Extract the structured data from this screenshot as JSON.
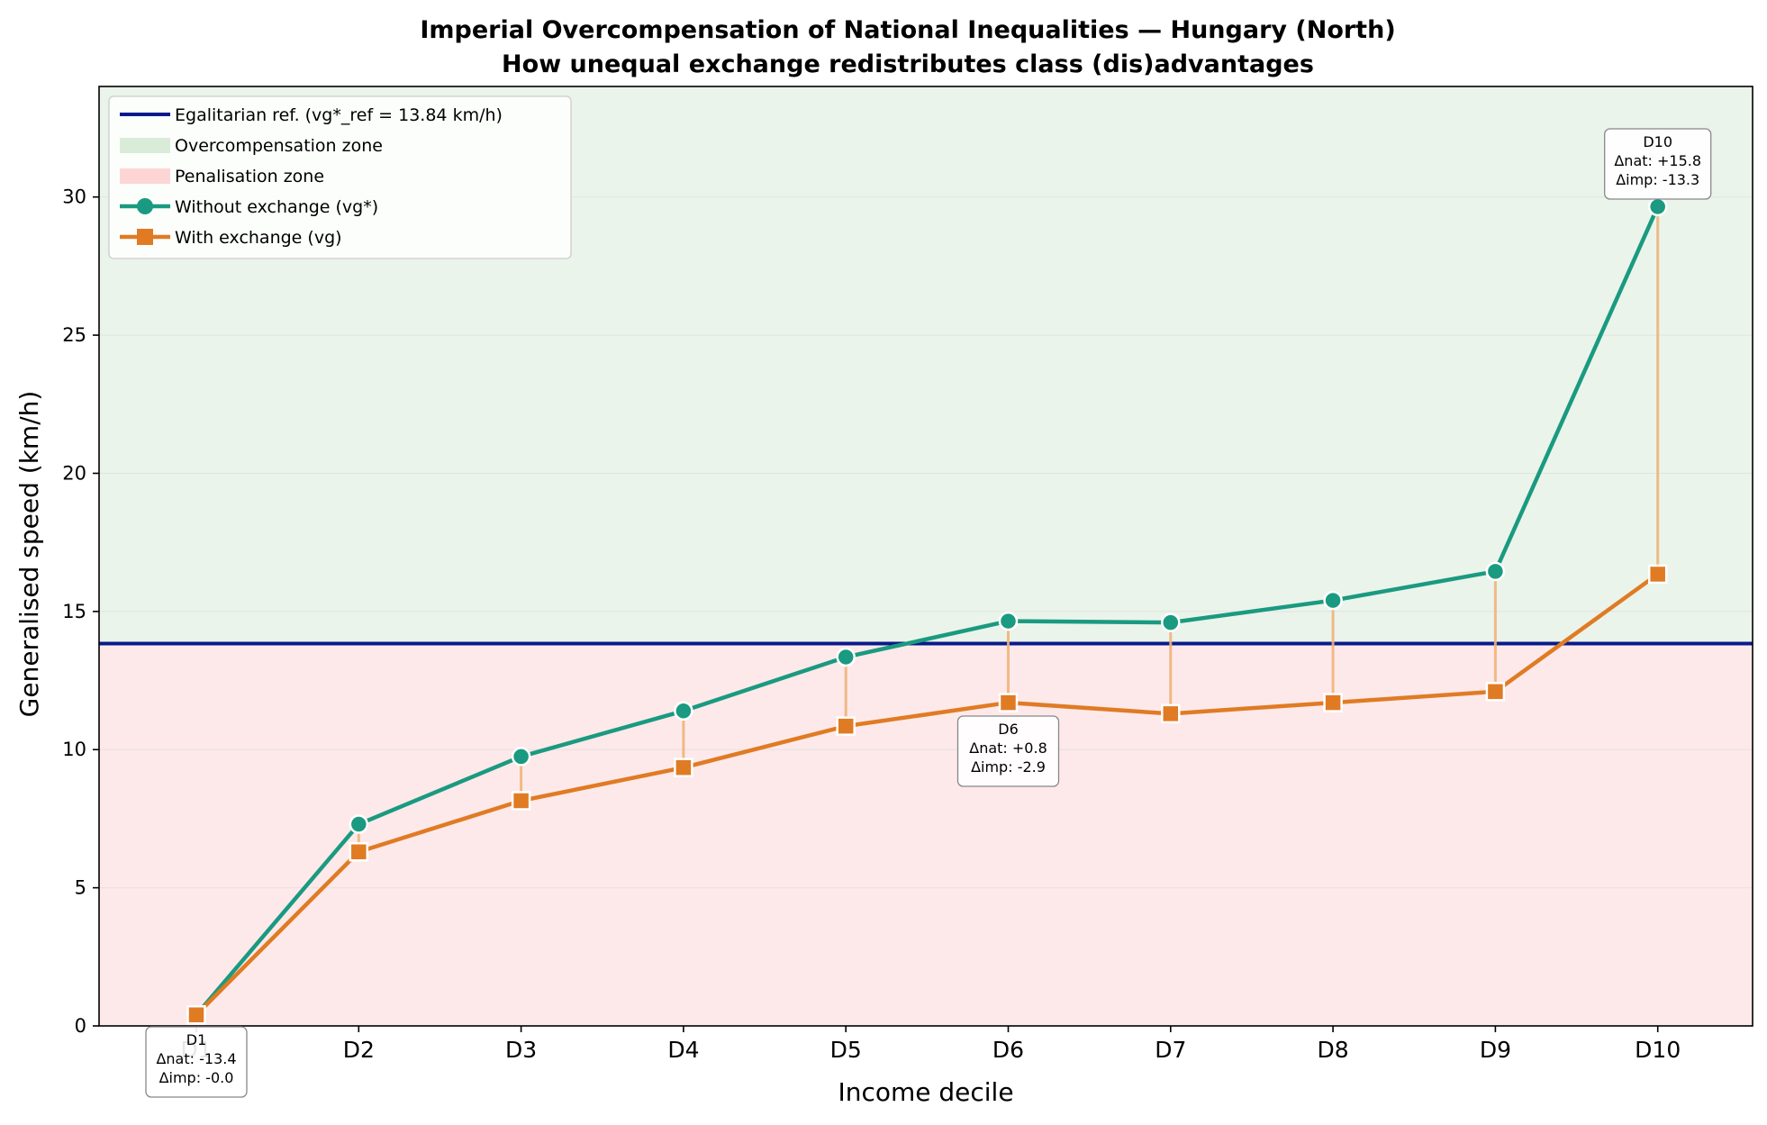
{
  "chart_data": {
    "type": "line",
    "title": "Imperial Overcompensation of National Inequalities — Hungary (North)",
    "subtitle": "How unequal exchange redistributes class (dis)advantages",
    "xlabel": "Income decile",
    "ylabel": "Generalised speed (km/h)",
    "categories": [
      "D1",
      "D2",
      "D3",
      "D4",
      "D5",
      "D6",
      "D7",
      "D8",
      "D9",
      "D10"
    ],
    "ylim": [
      0,
      34
    ],
    "yticks": [
      0,
      5,
      10,
      15,
      20,
      25,
      30
    ],
    "grid": "horizontal",
    "legend_position": "top-left",
    "reference": {
      "label": "Egalitarian ref. (vg*_ref = 13.84 km/h)",
      "value": 13.84,
      "color": "#0a1a8a"
    },
    "zones": [
      {
        "label": "Overcompensation zone",
        "color": "#d9ecd8",
        "fill": "#eaf4ea"
      },
      {
        "label": "Penalisation zone",
        "color": "#fdd5d5",
        "fill": "#fde9ea"
      }
    ],
    "series": [
      {
        "name": "Without exchange (vg*)",
        "color": "#1a9a80",
        "marker": "circle",
        "values": [
          0.4,
          7.3,
          9.75,
          11.4,
          13.35,
          14.65,
          14.6,
          15.4,
          16.45,
          29.65
        ]
      },
      {
        "name": "With exchange (vg)",
        "color": "#e07b24",
        "marker": "square",
        "values": [
          0.4,
          6.3,
          8.15,
          9.35,
          10.85,
          11.7,
          11.3,
          11.7,
          12.1,
          16.35
        ]
      }
    ],
    "connector_color": "#f0b47a",
    "annotations": [
      {
        "decile": "D1",
        "lines": [
          "D1",
          "Δnat: -13.4",
          "Δimp: -0.0"
        ]
      },
      {
        "decile": "D6",
        "lines": [
          "D6",
          "Δnat: +0.8",
          "Δimp: -2.9"
        ]
      },
      {
        "decile": "D10",
        "lines": [
          "D10",
          "Δnat: +15.8",
          "Δimp: -13.3"
        ]
      }
    ]
  }
}
